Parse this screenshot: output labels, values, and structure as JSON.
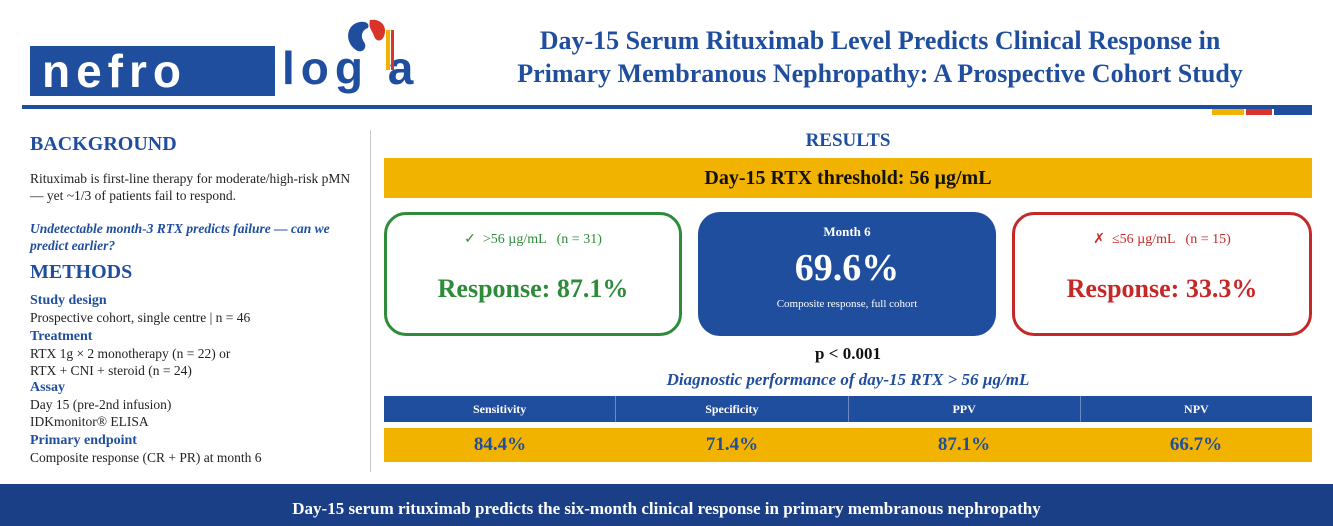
{
  "header": {
    "logo_box_text": "nefro",
    "logo_rest_text": "log a",
    "title_line1": "Day-15 Serum Rituximab Level Predicts Clinical Response in",
    "title_line2": "Primary Membranous Nephropathy: A Prospective Cohort Study",
    "colors": {
      "brand_blue": "#1f4e9e",
      "accent_yellow": "#f2b300",
      "accent_red": "#d9342b"
    }
  },
  "background": {
    "title": "BACKGROUND",
    "text": "Rituximab is first-line therapy for moderate/high-risk pMN — yet ~1/3 of patients fail to respond.",
    "question": "Undetectable month-3 RTX predicts failure — can we predict earlier?"
  },
  "methods": {
    "title": "METHODS",
    "items": [
      {
        "label": "Study design",
        "lines": [
          "Prospective cohort, single centre  |  n = 46"
        ]
      },
      {
        "label": "Treatment",
        "lines": [
          "RTX 1g × 2 monotherapy (n = 22) or",
          "RTX + CNI + steroid (n = 24)"
        ]
      },
      {
        "label": "Assay",
        "lines": [
          "Day 15 (pre-2nd infusion)",
          "IDKmonitor® ELISA"
        ]
      },
      {
        "label": "Primary endpoint",
        "lines": [
          "Composite response (CR + PR) at month 6"
        ]
      }
    ]
  },
  "results": {
    "title": "RESULTS",
    "threshold": "Day-15 RTX threshold: 56 µg/mL",
    "high_group": {
      "icon": "✓",
      "label": ">56 µg/mL   (n = 31)",
      "response": "Response: 87.1%",
      "color": "#2e8b3a"
    },
    "overall": {
      "label": "Month 6",
      "value": "69.6%",
      "caption": "Composite response, full cohort"
    },
    "low_group": {
      "icon": "✗",
      "label": "≤56 µg/mL   (n = 15)",
      "response": "Response: 33.3%",
      "color": "#c62828"
    },
    "p_value": "p < 0.001",
    "diag_title": "Diagnostic performance of day-15 RTX > 56 µg/mL",
    "metrics": [
      {
        "name": "Sensitivity",
        "value": "84.4%"
      },
      {
        "name": "Specificity",
        "value": "71.4%"
      },
      {
        "name": "PPV",
        "value": "87.1%"
      },
      {
        "name": "NPV",
        "value": "66.7%"
      }
    ]
  },
  "footer": {
    "text": "Day-15 serum rituximab predicts the six-month clinical response in primary membranous nephropathy"
  }
}
